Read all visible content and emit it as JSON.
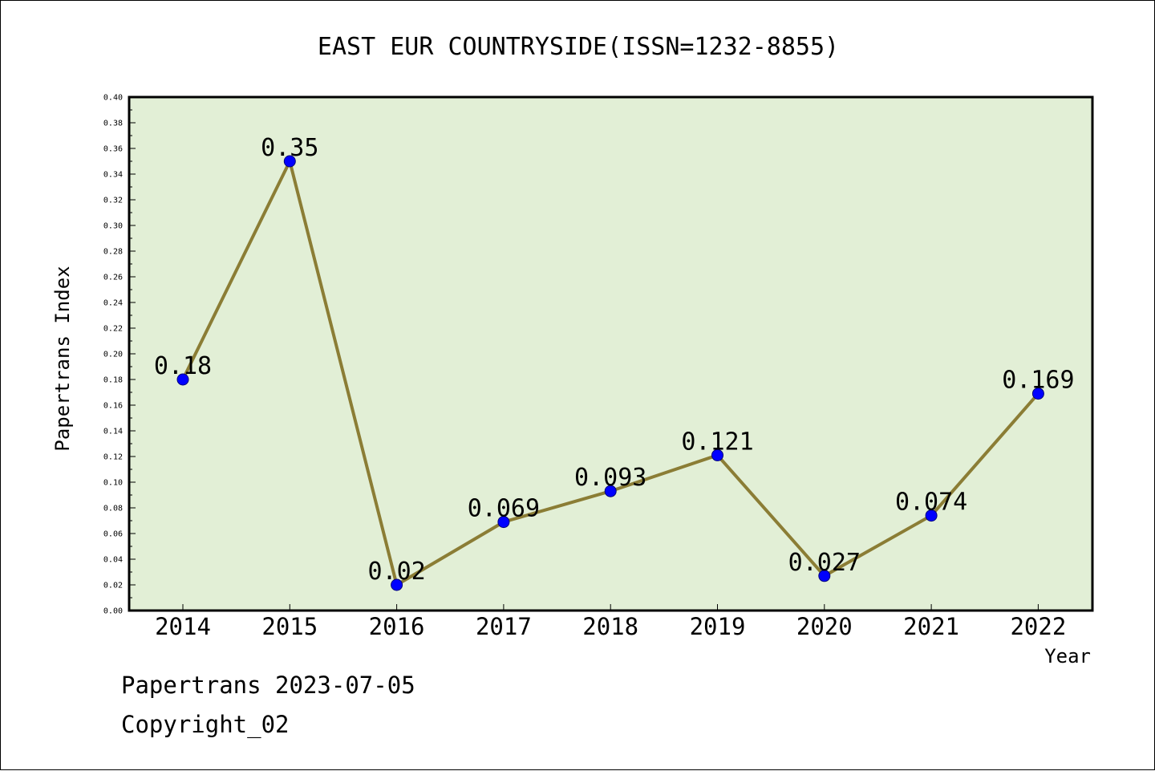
{
  "chart_data": {
    "type": "line",
    "title": "EAST EUR COUNTRYSIDE(ISSN=1232-8855)",
    "xlabel": "Year",
    "ylabel": "Papertrans Index",
    "categories": [
      "2014",
      "2015",
      "2016",
      "2017",
      "2018",
      "2019",
      "2020",
      "2021",
      "2022"
    ],
    "values": [
      0.18,
      0.35,
      0.02,
      0.069,
      0.093,
      0.121,
      0.027,
      0.074,
      0.169
    ],
    "data_labels": [
      "0.18",
      "0.35",
      "0.02",
      "0.069",
      "0.093",
      "0.121",
      "0.027",
      "0.074",
      "0.169"
    ],
    "ylim": [
      0,
      0.4
    ],
    "yticks": [
      "0.00",
      "0.02",
      "0.04",
      "0.06",
      "0.08",
      "0.10",
      "0.12",
      "0.14",
      "0.16",
      "0.18",
      "0.20",
      "0.22",
      "0.24",
      "0.26",
      "0.28",
      "0.30",
      "0.32",
      "0.34",
      "0.36",
      "0.38",
      "0.40"
    ],
    "grid": false,
    "colors": {
      "plot_background": "#e2efd6",
      "line": "#8b7d35",
      "marker": "#0000ff"
    }
  },
  "footer": {
    "date_line": "Papertrans 2023-07-05",
    "copyright": "Copyright_02"
  }
}
